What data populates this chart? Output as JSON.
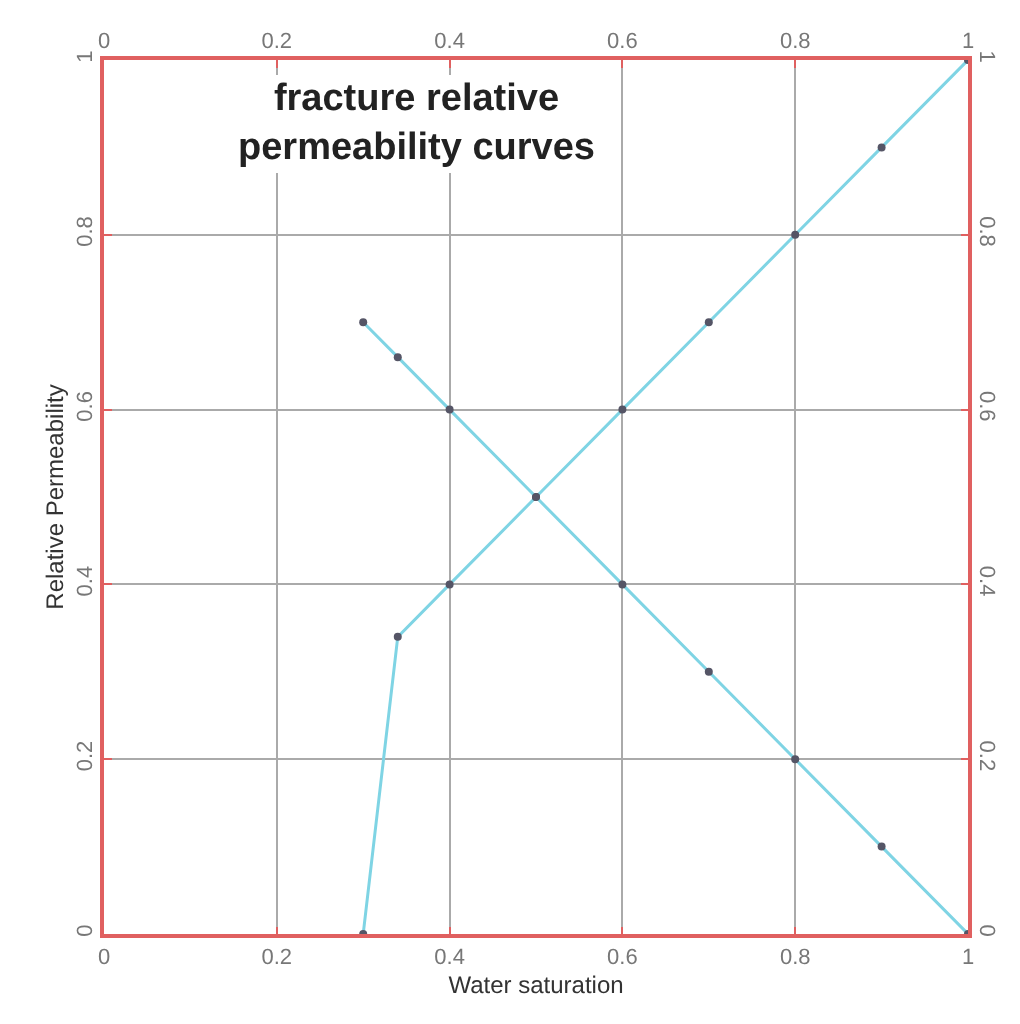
{
  "chart_data": {
    "type": "line",
    "title": "fracture relative permeability curves",
    "xlabel": "Water saturation",
    "ylabel": "Relative Permeability",
    "series": [
      {
        "color": "#7fd4e4",
        "x": [
          0.3,
          0.34,
          0.4,
          0.5,
          0.6,
          0.7,
          0.8,
          0.9,
          1
        ],
        "values": [
          0,
          0.34,
          0.4,
          0.5,
          0.6,
          0.7,
          0.8,
          0.9,
          1
        ]
      },
      {
        "color": "#7fd4e4",
        "x": [
          0.3,
          0.34,
          0.4,
          0.5,
          0.6,
          0.7,
          0.8,
          0.9,
          1
        ],
        "values": [
          0.7,
          0.66,
          0.6,
          0.5,
          0.4,
          0.3,
          0.2,
          0.1,
          0
        ]
      }
    ],
    "xlim": [
      0,
      1
    ],
    "xticks": [
      0,
      0.2,
      0.4,
      0.6,
      0.8,
      1
    ],
    "ylim": [
      0,
      1
    ],
    "yticks": [
      0,
      0.2,
      0.4,
      0.6,
      0.8,
      1
    ],
    "x2lim": [
      0,
      1
    ],
    "x2ticks": [
      0,
      0.2,
      0.4,
      0.6,
      0.8,
      1
    ],
    "y2lim": [
      0,
      1
    ],
    "y2ticks": [
      0,
      0.2,
      0.4,
      0.6,
      0.8,
      1
    ],
    "grid": true,
    "marker": "circle",
    "line_style": "solid"
  }
}
